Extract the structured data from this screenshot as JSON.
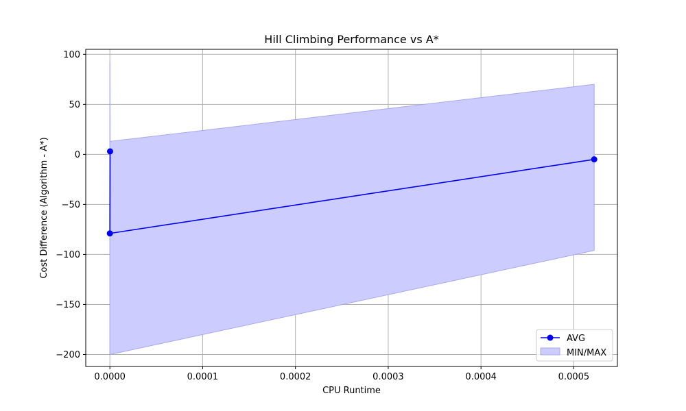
{
  "chart_data": {
    "type": "line",
    "title": "Hill Climbing Performance vs A*",
    "xlabel": "CPU Runtime",
    "ylabel": "Cost Difference (Algorithm - A*)",
    "xlim": [
      -2.6e-05,
      0.000547
    ],
    "ylim": [
      -212,
      105
    ],
    "xticks": [
      0.0,
      0.0001,
      0.0002,
      0.0003,
      0.0004,
      0.0005
    ],
    "xtick_labels": [
      "0.0000",
      "0.0001",
      "0.0002",
      "0.0003",
      "0.0004",
      "0.0005"
    ],
    "yticks": [
      100,
      50,
      0,
      -50,
      -100,
      -150,
      -200
    ],
    "ytick_labels": [
      "100",
      "50",
      "0",
      "−50",
      "−100",
      "−150",
      "−200"
    ],
    "grid": true,
    "legend_position": "lower-right",
    "series": [
      {
        "name": "AVG",
        "kind": "line-marker",
        "color": "#0000ee",
        "x": [
          2e-07,
          0.0,
          0.000522
        ],
        "y": [
          3,
          -79,
          -5
        ]
      },
      {
        "name": "MIN/MAX",
        "kind": "band",
        "color": "#ccccff",
        "edge_color": "#a7a7ee",
        "x": [
          0.0,
          2e-07,
          0.000522
        ],
        "min": [
          -200,
          -200,
          -96
        ],
        "max": [
          93,
          13,
          70
        ]
      }
    ]
  }
}
